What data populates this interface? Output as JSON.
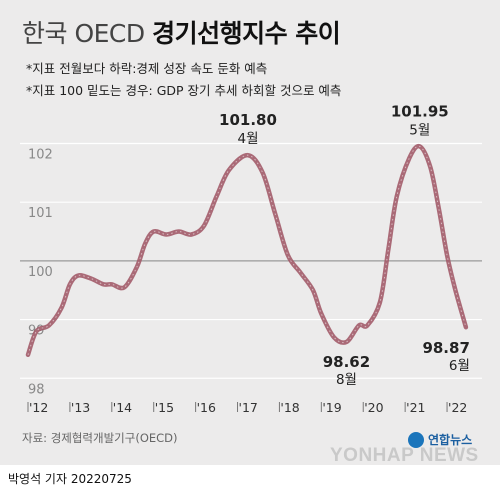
{
  "header": {
    "title_light": "한국 OECD",
    "title_bold": "경기선행지수 추이",
    "notes": [
      "*지표 전월보다 하락:경제 성장 속도 둔화 예측",
      "*지표 100 밑도는 경우: GDP 장기 추세 하회할 것으로 예측"
    ]
  },
  "chart_data": {
    "type": "line",
    "x_unit": "year",
    "xlim": [
      2012,
      2022.5
    ],
    "ylim": [
      97.8,
      102.4
    ],
    "y_ticks": [
      "98",
      "99",
      "100",
      "101",
      "102"
    ],
    "x_tick_labels": [
      "'12",
      "'13",
      "'14",
      "'15",
      "'16",
      "'17",
      "'18",
      "'19",
      "'20",
      "'21",
      "'22"
    ],
    "colors": {
      "line": "#a35c6a",
      "baseline": "#9a9a9a",
      "grid": "#ffffff",
      "text": "#222222"
    },
    "series": [
      {
        "points": [
          [
            2012.0,
            98.4
          ],
          [
            2012.2,
            98.8
          ],
          [
            2012.5,
            98.9
          ],
          [
            2012.8,
            99.2
          ],
          [
            2013.0,
            99.6
          ],
          [
            2013.2,
            99.75
          ],
          [
            2013.5,
            99.7
          ],
          [
            2013.8,
            99.6
          ],
          [
            2014.0,
            99.6
          ],
          [
            2014.3,
            99.55
          ],
          [
            2014.6,
            99.9
          ],
          [
            2014.8,
            100.3
          ],
          [
            2015.0,
            100.5
          ],
          [
            2015.3,
            100.45
          ],
          [
            2015.6,
            100.5
          ],
          [
            2015.9,
            100.45
          ],
          [
            2016.2,
            100.6
          ],
          [
            2016.5,
            101.1
          ],
          [
            2016.8,
            101.55
          ],
          [
            2017.25,
            101.8
          ],
          [
            2017.6,
            101.5
          ],
          [
            2017.9,
            100.8
          ],
          [
            2018.2,
            100.1
          ],
          [
            2018.5,
            99.8
          ],
          [
            2018.8,
            99.5
          ],
          [
            2019.0,
            99.1
          ],
          [
            2019.3,
            98.7
          ],
          [
            2019.6,
            98.62
          ],
          [
            2019.9,
            98.9
          ],
          [
            2020.1,
            98.9
          ],
          [
            2020.4,
            99.3
          ],
          [
            2020.6,
            100.2
          ],
          [
            2020.8,
            101.1
          ],
          [
            2021.1,
            101.75
          ],
          [
            2021.35,
            101.95
          ],
          [
            2021.6,
            101.6
          ],
          [
            2021.8,
            100.9
          ],
          [
            2022.0,
            100.1
          ],
          [
            2022.2,
            99.5
          ],
          [
            2022.45,
            98.87
          ]
        ]
      }
    ],
    "annotations": [
      {
        "x": 2017.25,
        "y": 101.8,
        "value": "101.80",
        "month": "4월",
        "place": "above"
      },
      {
        "x": 2019.6,
        "y": 98.62,
        "value": "98.62",
        "month": "8월",
        "place": "below"
      },
      {
        "x": 2021.35,
        "y": 101.95,
        "value": "101.95",
        "month": "5월",
        "place": "above"
      },
      {
        "x": 2022.45,
        "y": 98.87,
        "value": "98.87",
        "month": "6월",
        "place": "below-left"
      }
    ]
  },
  "footer": {
    "source": "자료: 경제협력개발기구(OECD)",
    "logo_ko": "연합뉴스",
    "logo_en": "YONHAP NEWS",
    "credit": "박영석 기자 20220725"
  }
}
